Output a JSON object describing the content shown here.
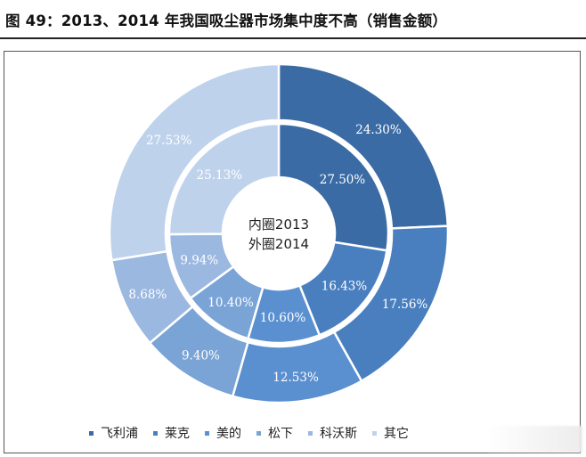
{
  "title": "图 49：2013、2014 年我国吸尘器市场集中度不高（销售金额）",
  "chart_data": {
    "type": "pie",
    "subtype": "double-donut",
    "center_label": [
      "内圈2013",
      "外圈2014"
    ],
    "categories": [
      "飞利浦",
      "莱克",
      "美的",
      "松下",
      "科沃斯",
      "其它"
    ],
    "colors": [
      "#3B6BA5",
      "#4A7FBF",
      "#5A8FD0",
      "#7AA3D6",
      "#9BB8E0",
      "#BFD2EC"
    ],
    "series": [
      {
        "name": "内圈2013",
        "values": [
          27.5,
          16.43,
          10.6,
          10.4,
          9.94,
          25.13
        ],
        "labels": [
          "27.50%",
          "16.43%",
          "10.60%",
          "10.40%",
          "9.94%",
          "25.13%"
        ]
      },
      {
        "name": "外圈2014",
        "values": [
          24.3,
          17.56,
          12.53,
          9.4,
          8.68,
          27.53
        ],
        "labels": [
          "24.30%",
          "17.56%",
          "12.53%",
          "9.40%",
          "8.68%",
          "27.53%"
        ]
      }
    ],
    "legend_position": "bottom",
    "legend": [
      "飞利浦",
      "莱克",
      "美的",
      "松下",
      "科沃斯",
      "其它"
    ]
  }
}
